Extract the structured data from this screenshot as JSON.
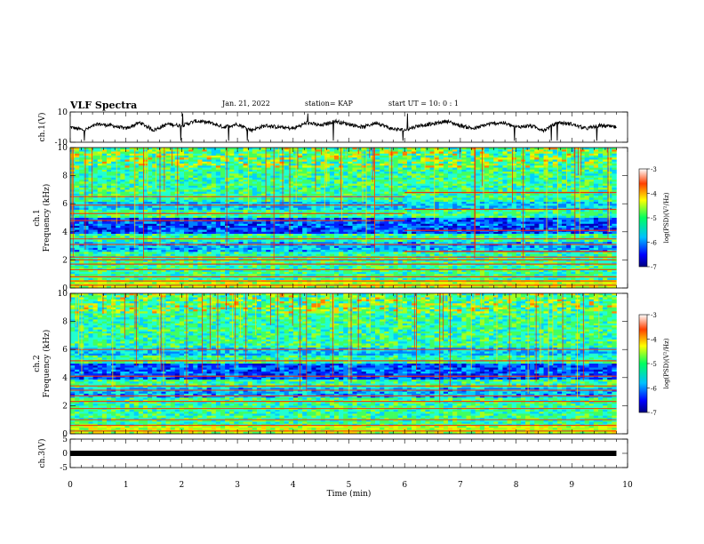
{
  "header": {
    "title": "VLF Spectra",
    "date": "Jan. 21, 2022",
    "station": "station= KAP",
    "start": "start  UT =  10: 0  : 1"
  },
  "chart_data": [
    {
      "type": "line",
      "title": "",
      "ylabel": "ch.1(V)",
      "ylim": [
        -10,
        10
      ],
      "yticks": [
        "10",
        "-10"
      ],
      "xlim": [
        0,
        10
      ],
      "series": [
        {
          "x": [
            0,
            0.25,
            0.5,
            0.75,
            1.0,
            1.25,
            1.5,
            1.75,
            2.0,
            2.25,
            2.5,
            2.75,
            3.0,
            3.25,
            3.5,
            3.75,
            4.0,
            4.25,
            4.5,
            4.75,
            5.0,
            5.25,
            5.5,
            5.75,
            6.0,
            6.25,
            6.5,
            6.75,
            7.0,
            7.25,
            7.5,
            7.75,
            8.0,
            8.25,
            8.5,
            8.75,
            9.0,
            9.25,
            9.5,
            9.8
          ],
          "y": [
            0,
            -2,
            2,
            1,
            -1,
            3,
            -2,
            2,
            1,
            4,
            3,
            0,
            2,
            -2,
            1,
            0,
            -1,
            3,
            1,
            4,
            2,
            0,
            3,
            -1,
            -2,
            1,
            2,
            4,
            1,
            -1,
            2,
            3,
            0,
            1,
            -2,
            3,
            2,
            -1,
            1,
            0
          ]
        }
      ]
    },
    {
      "type": "heatmap",
      "title": "",
      "ylabel": "ch.1  Frequency  (kHz)",
      "ylim": [
        0,
        10
      ],
      "yticks": [
        "0",
        "2",
        "4",
        "6",
        "8",
        "10"
      ],
      "xlim": [
        0,
        10
      ],
      "colorbar": {
        "label": "log(PSD)(V²/Hz)",
        "range": [
          -7,
          -3
        ],
        "ticks": [
          "-3",
          "-4",
          "-5",
          "-6",
          "-7"
        ]
      },
      "bands_khz": [
        0.2,
        0.5,
        0.8,
        1.3,
        1.7,
        2.0,
        2.2,
        3.1,
        3.5,
        4.8,
        5.3,
        5.9,
        6.5
      ],
      "band_shift": {
        "from_minute": 6.0,
        "to_khz": [
          2.6,
          4.1,
          5.6,
          6.8
        ]
      }
    },
    {
      "type": "heatmap",
      "title": "",
      "ylabel": "ch.2  Frequency  (kHz)",
      "ylim": [
        0,
        10
      ],
      "yticks": [
        "0",
        "2",
        "4",
        "6",
        "8",
        "10"
      ],
      "xlim": [
        0,
        10
      ],
      "colorbar": {
        "label": "log(PSD)(V²/Hz)",
        "range": [
          -7,
          -3
        ],
        "ticks": [
          "-3",
          "-4",
          "-5",
          "-6",
          "-7"
        ]
      },
      "bands_khz": [
        0.2,
        0.6,
        1.0,
        1.8,
        2.3,
        2.7,
        3.1,
        3.4,
        4.1,
        5.2,
        6.0
      ],
      "band_shift": null
    },
    {
      "type": "line",
      "title": "",
      "ylabel": "ch.3(V)",
      "ylim": [
        -5,
        5
      ],
      "yticks": [
        "5",
        "0",
        "-5"
      ],
      "xlim": [
        0,
        10
      ],
      "xlabel": "Time  (min)",
      "xticks": [
        "0",
        "1",
        "2",
        "3",
        "4",
        "5",
        "6",
        "7",
        "8",
        "9",
        "10"
      ],
      "series": [
        {
          "x": [
            0,
            9.8
          ],
          "y": [
            0,
            0
          ]
        }
      ]
    }
  ]
}
